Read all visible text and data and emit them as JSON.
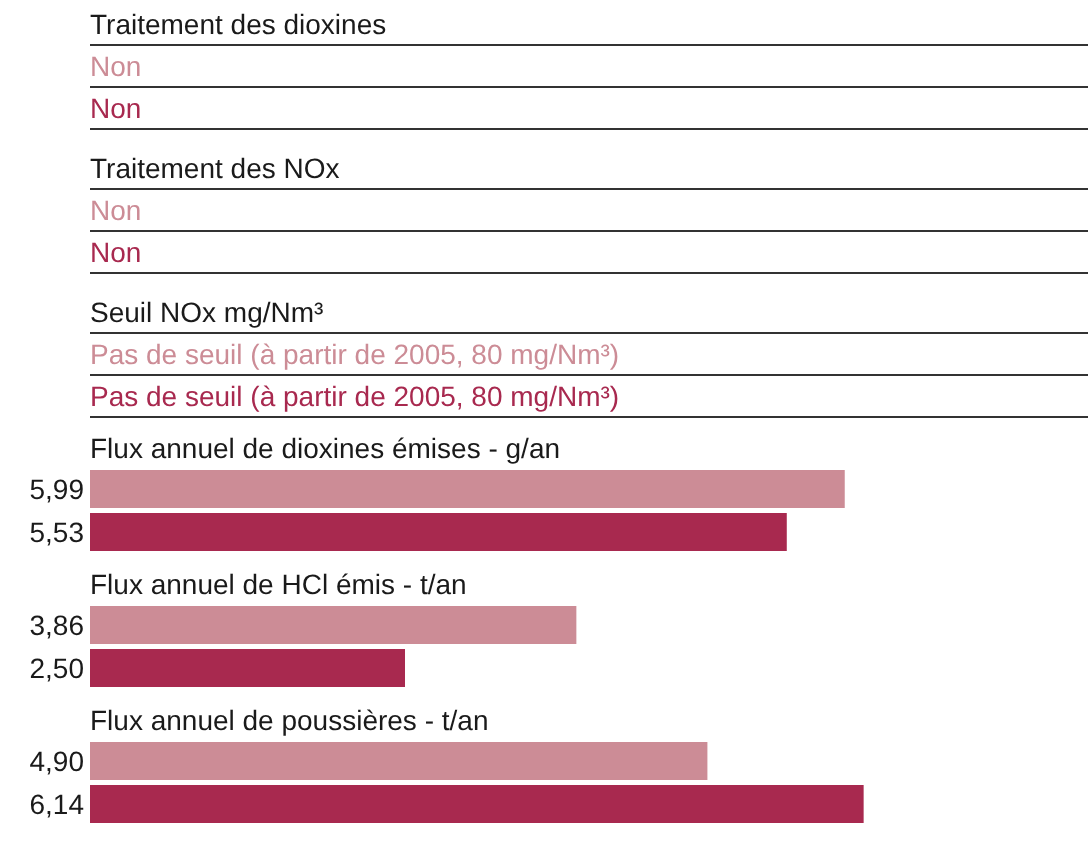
{
  "chart_data": [
    {
      "type": "other",
      "annotations": [
        "Traitement des dioxines",
        "Non",
        "Non",
        "Traitement des NOx",
        "Non",
        "Non",
        "Seuil NOx mg/Nm³",
        "Pas de seuil (à partir de 2005, 80 mg/Nm³)",
        "Pas de seuil (à partir de 2005, 80 mg/Nm³)"
      ],
      "colors": [
        "#1a1a1a",
        "#cc8c96",
        "#a8294f",
        "#1a1a1a",
        "#cc8c96",
        "#a8294f",
        "#1a1a1a",
        "#cc8c96",
        "#a8294f"
      ]
    },
    {
      "type": "bar",
      "orientation": "horizontal",
      "title": "Flux annuel de dioxines émises - g/an",
      "categories": [
        null,
        null
      ],
      "values": [
        5.99,
        5.53
      ],
      "colors": [
        "#cc8c96",
        "#a8294f"
      ],
      "value_labels": [
        "5,99",
        "5,53"
      ],
      "tick_labels": false
    },
    {
      "type": "bar",
      "orientation": "horizontal",
      "title": "Flux annuel de HCl émis - t/an",
      "categories": [
        null,
        null
      ],
      "values": [
        3.86,
        2.5
      ],
      "colors": [
        "#cc8c96",
        "#a8294f"
      ],
      "value_labels": [
        "3,86",
        "2,50"
      ],
      "tick_labels": false
    },
    {
      "type": "bar",
      "orientation": "horizontal",
      "title": "Flux annuel de poussières - t/an",
      "categories": [
        null,
        null
      ],
      "values": [
        4.9,
        6.14
      ],
      "colors": [
        "#cc8c96",
        "#a8294f"
      ],
      "value_labels": [
        "4,90",
        "6,14"
      ],
      "tick_labels": false
    }
  ]
}
